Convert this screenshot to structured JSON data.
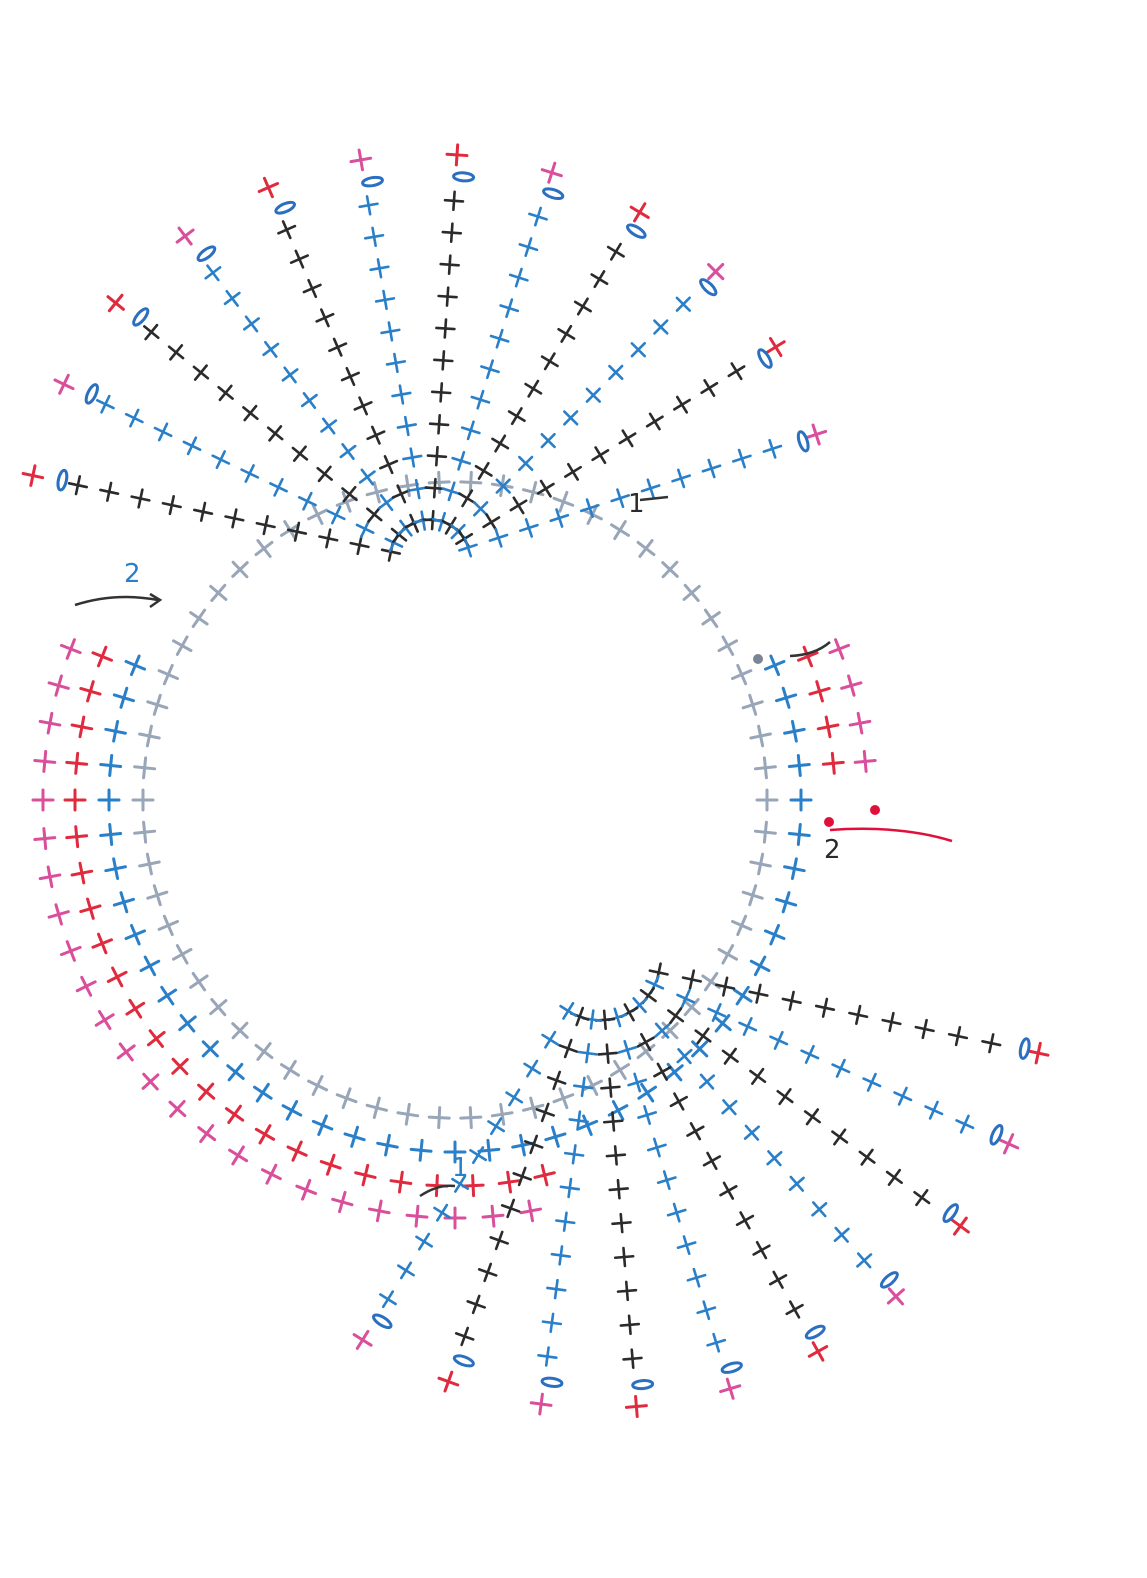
{
  "diagram": {
    "title": "",
    "type": "crochet-stitch-chart",
    "colors": {
      "foundation": "#98a6b8",
      "row_black": "#2b2b2b",
      "row_blue": "#2a7fc9",
      "edge_red": "#e02a3e",
      "edge_pink": "#d94f9b",
      "chain": "#2a6fc0",
      "marker": "#e0103a"
    },
    "symbols": {
      "single_crochet": "+",
      "chain": "0"
    },
    "labels": {
      "row_label_1a": "1",
      "row_label_1b": "1",
      "row_label_2a": "2",
      "row_label_2b": "2"
    }
  }
}
